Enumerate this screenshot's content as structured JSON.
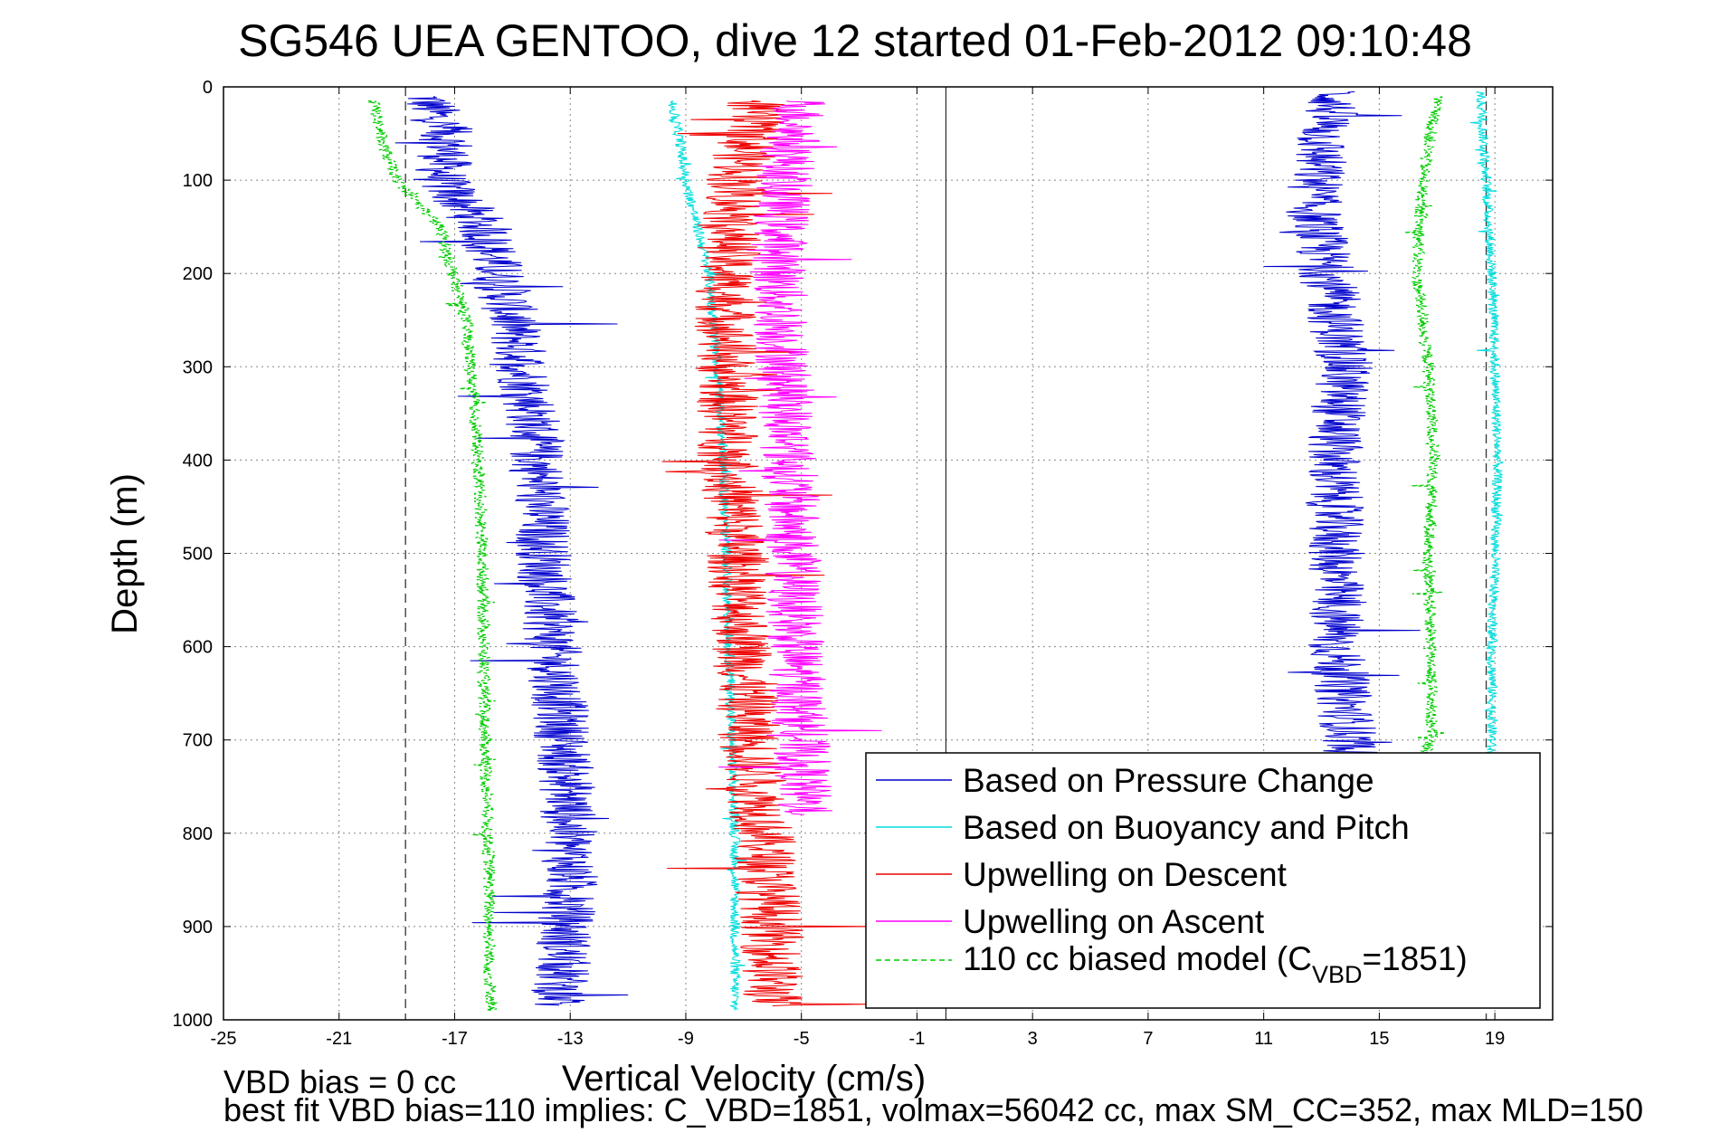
{
  "chart_data": {
    "type": "line",
    "title": "SG546 UEA GENTOO, dive 12 started 01-Feb-2012 09:10:48",
    "xlabel": "Vertical Velocity (cm/s)",
    "ylabel": "Depth (m)",
    "xlim": [
      -25,
      21
    ],
    "ylim": [
      0,
      1000
    ],
    "y_reversed": true,
    "grid": true,
    "xticks": [
      -25,
      -21,
      -17,
      -13,
      -9,
      -5,
      -1,
      3,
      7,
      11,
      15,
      19
    ],
    "yticks": [
      0,
      100,
      200,
      300,
      400,
      500,
      600,
      700,
      800,
      900,
      1000
    ],
    "reference_lines": {
      "solid": [
        0
      ],
      "dashed": [
        -18.7,
        18.7
      ]
    },
    "legend_placement": "bottom-right",
    "series": [
      {
        "name": "Based on Pressure Change",
        "color": "#0000cc",
        "noise": 1.0,
        "profile": [
          {
            "x": -18.0,
            "depth": 10
          },
          {
            "x": -17.2,
            "depth": 60
          },
          {
            "x": -17.5,
            "depth": 100
          },
          {
            "x": -16.0,
            "depth": 150
          },
          {
            "x": -15.0,
            "depth": 250
          },
          {
            "x": -14.3,
            "depth": 350
          },
          {
            "x": -14.0,
            "depth": 450
          },
          {
            "x": -13.8,
            "depth": 550
          },
          {
            "x": -13.4,
            "depth": 650
          },
          {
            "x": -13.1,
            "depth": 750
          },
          {
            "x": -13.0,
            "depth": 850
          },
          {
            "x": -13.3,
            "depth": 950
          },
          {
            "x": -13.4,
            "depth": 985
          },
          {
            "x": 13.5,
            "depth": 5
          },
          {
            "x": 13.0,
            "depth": 60
          },
          {
            "x": 12.7,
            "depth": 130
          },
          {
            "x": 13.2,
            "depth": 200
          },
          {
            "x": 13.8,
            "depth": 300
          },
          {
            "x": 13.4,
            "depth": 400
          },
          {
            "x": 13.5,
            "depth": 500
          },
          {
            "x": 13.5,
            "depth": 600
          },
          {
            "x": 14.0,
            "depth": 700
          },
          {
            "x": 14.0,
            "depth": 720
          }
        ]
      },
      {
        "name": "Based on Buoyancy and Pitch",
        "color": "#00dddd",
        "noise": 0.18,
        "profile": [
          {
            "x": -9.5,
            "depth": 15
          },
          {
            "x": -9.2,
            "depth": 60
          },
          {
            "x": -9.0,
            "depth": 100
          },
          {
            "x": -8.2,
            "depth": 200
          },
          {
            "x": -7.9,
            "depth": 300
          },
          {
            "x": -7.7,
            "depth": 400
          },
          {
            "x": -7.6,
            "depth": 500
          },
          {
            "x": -7.5,
            "depth": 600
          },
          {
            "x": -7.4,
            "depth": 700
          },
          {
            "x": -7.3,
            "depth": 800
          },
          {
            "x": -7.3,
            "depth": 900
          },
          {
            "x": -7.3,
            "depth": 990
          },
          {
            "x": 18.5,
            "depth": 5
          },
          {
            "x": 18.7,
            "depth": 100
          },
          {
            "x": 18.9,
            "depth": 200
          },
          {
            "x": 19.0,
            "depth": 300
          },
          {
            "x": 19.1,
            "depth": 400
          },
          {
            "x": 19.0,
            "depth": 500
          },
          {
            "x": 18.9,
            "depth": 600
          },
          {
            "x": 18.9,
            "depth": 700
          },
          {
            "x": 18.8,
            "depth": 720
          }
        ]
      },
      {
        "name": "Upwelling on Descent",
        "color": "#ee0000",
        "noise": 1.1,
        "profile": [
          {
            "x": -6.5,
            "depth": 15
          },
          {
            "x": -7.2,
            "depth": 100
          },
          {
            "x": -7.6,
            "depth": 200
          },
          {
            "x": -7.6,
            "depth": 300
          },
          {
            "x": -7.5,
            "depth": 400
          },
          {
            "x": -7.2,
            "depth": 500
          },
          {
            "x": -7.0,
            "depth": 600
          },
          {
            "x": -6.8,
            "depth": 700
          },
          {
            "x": -6.3,
            "depth": 800
          },
          {
            "x": -6.0,
            "depth": 900
          },
          {
            "x": -6.0,
            "depth": 985
          }
        ]
      },
      {
        "name": "Upwelling on Ascent",
        "color": "#ff00ff",
        "noise": 1.0,
        "profile": [
          {
            "x": -5.0,
            "depth": 15
          },
          {
            "x": -5.6,
            "depth": 100
          },
          {
            "x": -5.8,
            "depth": 200
          },
          {
            "x": -5.6,
            "depth": 300
          },
          {
            "x": -5.4,
            "depth": 400
          },
          {
            "x": -5.3,
            "depth": 500
          },
          {
            "x": -5.2,
            "depth": 600
          },
          {
            "x": -5.0,
            "depth": 700
          },
          {
            "x": -4.9,
            "depth": 780
          }
        ]
      },
      {
        "name": "110 cc biased model (C_VBD=1851)",
        "color": "#00cc00",
        "dashed": true,
        "noise": 0.22,
        "profile": [
          {
            "x": -19.8,
            "depth": 15
          },
          {
            "x": -19.5,
            "depth": 60
          },
          {
            "x": -19.0,
            "depth": 100
          },
          {
            "x": -17.5,
            "depth": 150
          },
          {
            "x": -16.6,
            "depth": 250
          },
          {
            "x": -16.3,
            "depth": 350
          },
          {
            "x": -16.1,
            "depth": 450
          },
          {
            "x": -16.0,
            "depth": 550
          },
          {
            "x": -16.0,
            "depth": 650
          },
          {
            "x": -15.9,
            "depth": 750
          },
          {
            "x": -15.8,
            "depth": 850
          },
          {
            "x": -15.8,
            "depth": 950
          },
          {
            "x": -15.7,
            "depth": 990
          },
          {
            "x": 17.0,
            "depth": 10
          },
          {
            "x": 16.5,
            "depth": 100
          },
          {
            "x": 16.3,
            "depth": 200
          },
          {
            "x": 16.7,
            "depth": 300
          },
          {
            "x": 16.9,
            "depth": 400
          },
          {
            "x": 16.7,
            "depth": 500
          },
          {
            "x": 16.8,
            "depth": 600
          },
          {
            "x": 16.8,
            "depth": 700
          },
          {
            "x": 16.6,
            "depth": 715
          }
        ]
      }
    ]
  },
  "legend": {
    "items": [
      {
        "label": "Based on Pressure Change",
        "color": "#0000cc"
      },
      {
        "label": "Based on Buoyancy and Pitch",
        "color": "#00dddd"
      },
      {
        "label": "Upwelling on Descent",
        "color": "#ee0000"
      },
      {
        "label": "Upwelling on Ascent",
        "color": "#ff00ff"
      },
      {
        "label_main": "110 cc biased model (C",
        "label_sub": "VBD",
        "label_tail": "=1851)",
        "color": "#00cc00"
      }
    ]
  },
  "footer": {
    "line1": "VBD bias = 0 cc",
    "line2": "best fit VBD bias=110 implies: C_VBD=1851, volmax=56042 cc, max SM_CC=352, max MLD=150"
  }
}
